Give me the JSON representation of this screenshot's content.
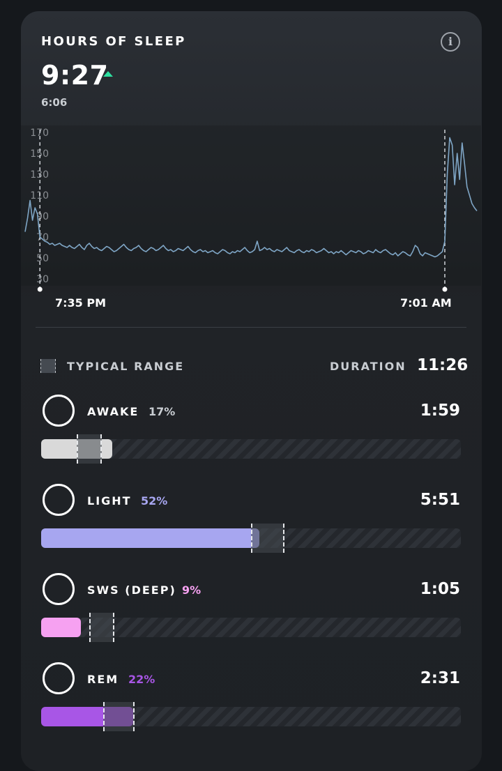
{
  "header": {
    "title": "HOURS OF SLEEP",
    "value": "9:27",
    "sub_value": "6:06",
    "trend": "up",
    "info_icon": "info-icon"
  },
  "chart_data": {
    "type": "line",
    "title": "",
    "xlabel": "",
    "ylabel": "",
    "ylim": [
      20,
      180
    ],
    "y_ticks": [
      "170",
      "150",
      "130",
      "110",
      "90",
      "70",
      "50",
      "30"
    ],
    "x_labels": [
      "7:35 PM",
      "7:01 AM"
    ],
    "series": [
      {
        "values": [
          75,
          88,
          105,
          86,
          98,
          92,
          70,
          68,
          66,
          65,
          63,
          64,
          62,
          63,
          64,
          62,
          61,
          60,
          62,
          60,
          59,
          61,
          63,
          60,
          58,
          62,
          64,
          61,
          59,
          60,
          58,
          57,
          59,
          61,
          60,
          58,
          56,
          57,
          59,
          61,
          63,
          60,
          58,
          57,
          59,
          60,
          62,
          59,
          57,
          56,
          58,
          60,
          59,
          57,
          58,
          60,
          62,
          59,
          57,
          58,
          56,
          57,
          59,
          58,
          57,
          59,
          61,
          58,
          56,
          55,
          57,
          58,
          56,
          57,
          55,
          56,
          57,
          55,
          54,
          56,
          58,
          57,
          55,
          54,
          56,
          55,
          57,
          56,
          58,
          60,
          57,
          55,
          56,
          58,
          66,
          57,
          58,
          60,
          58,
          59,
          57,
          56,
          58,
          57,
          56,
          58,
          60,
          57,
          56,
          55,
          57,
          58,
          56,
          55,
          57,
          56,
          58,
          57,
          55,
          56,
          57,
          59,
          57,
          55,
          56,
          54,
          56,
          55,
          57,
          55,
          53,
          55,
          57,
          56,
          55,
          57,
          56,
          54,
          55,
          57,
          56,
          55,
          58,
          56,
          55,
          57,
          58,
          56,
          54,
          53,
          55,
          52,
          54,
          56,
          55,
          53,
          52,
          56,
          62,
          60,
          54,
          52,
          55,
          54,
          53,
          52,
          51,
          52,
          54,
          56,
          66,
          130,
          165,
          158,
          120,
          150,
          125,
          160,
          140,
          118,
          110,
          102,
          98,
          95
        ],
        "color": "#7fa6c6"
      }
    ],
    "markers": [
      {
        "x_index": 6,
        "label": "7:35 PM"
      },
      {
        "x_index": 170,
        "label": "7:01 AM"
      }
    ]
  },
  "summary": {
    "legend_label": "TYPICAL RANGE",
    "duration_label": "DURATION",
    "duration_value": "11:26"
  },
  "stages": [
    {
      "name": "AWAKE",
      "percent": "17%",
      "time": "1:59",
      "color": "#d9d9d9",
      "pct_color": "#c9cdd2",
      "fill_fraction": 0.17,
      "range_fraction": [
        0.085,
        0.145
      ]
    },
    {
      "name": "LIGHT",
      "percent": "52%",
      "time": "5:51",
      "color": "#a7a6f0",
      "pct_color": "#a7a6f0",
      "fill_fraction": 0.52,
      "range_fraction": [
        0.5,
        0.58
      ]
    },
    {
      "name": "SWS (DEEP)",
      "percent": "9%",
      "time": "1:05",
      "color": "#f6a1f1",
      "pct_color": "#f6a1f1",
      "fill_fraction": 0.095,
      "range_fraction": [
        0.115,
        0.175
      ]
    },
    {
      "name": "REM",
      "percent": "22%",
      "time": "2:31",
      "color": "#a856e6",
      "pct_color": "#a856e6",
      "fill_fraction": 0.22,
      "range_fraction": [
        0.148,
        0.223
      ]
    }
  ]
}
